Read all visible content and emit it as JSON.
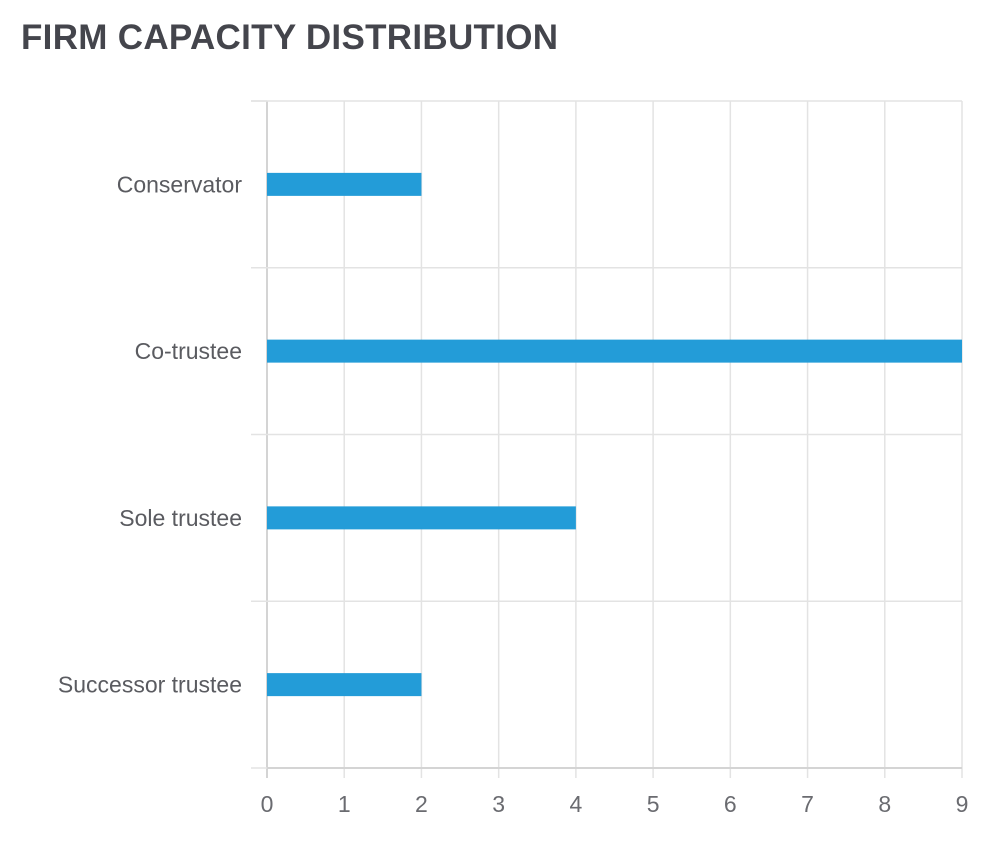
{
  "chart_data": {
    "type": "bar",
    "orientation": "horizontal",
    "title": "FIRM CAPACITY DISTRIBUTION",
    "categories": [
      "Conservator",
      "Co-trustee",
      "Sole trustee",
      "Successor trustee"
    ],
    "values": [
      2,
      9,
      4,
      2
    ],
    "xlabel": "",
    "ylabel": "",
    "xlim": [
      0,
      9
    ],
    "xticks": [
      0,
      1,
      2,
      3,
      4,
      5,
      6,
      7,
      8,
      9
    ],
    "grid": true,
    "legend": "none",
    "colors": {
      "bar": "#239cd8",
      "title": "#44454c",
      "grid": "#e3e3e3"
    }
  }
}
